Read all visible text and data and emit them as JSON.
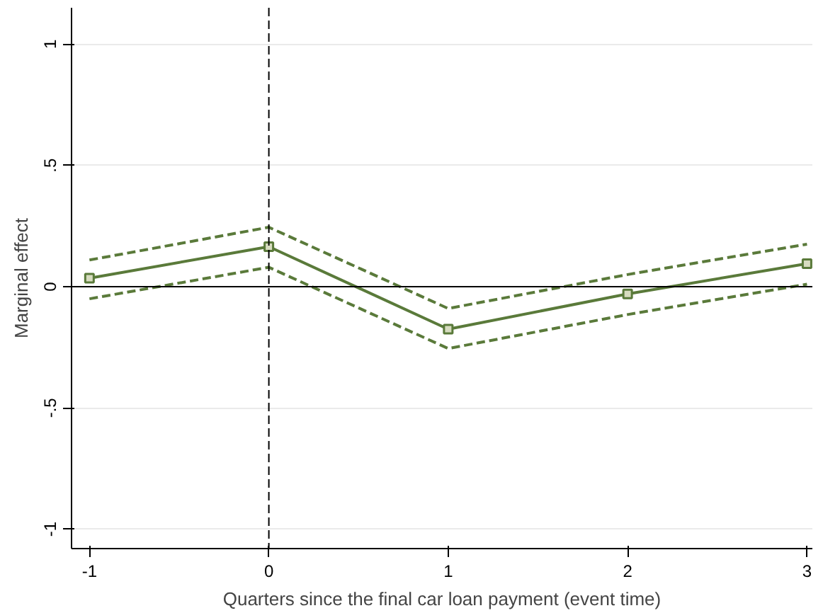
{
  "chart_data": {
    "type": "line",
    "xlabel": "Quarters since the final car loan payment (event time)",
    "ylabel": "Marginal effect",
    "x": [
      -1,
      0,
      1,
      2,
      3
    ],
    "series": [
      {
        "color": "#5a7a3a",
        "values": [
          0.11,
          0.245,
          -0.09,
          0.05,
          0.175
        ],
        "line_style": "dashed",
        "marker": "none"
      },
      {
        "color": "#5a7a3a",
        "values": [
          -0.05,
          0.08,
          -0.255,
          -0.115,
          0.01
        ],
        "line_style": "dashed",
        "marker": "none"
      },
      {
        "color": "#5a7a3a",
        "values": [
          0.035,
          0.165,
          -0.175,
          -0.03,
          0.095
        ]
      }
    ],
    "xlim": [
      -1.1,
      3.03
    ],
    "ylim": [
      -1.08,
      1.15
    ],
    "xticks": [
      -1,
      0,
      1,
      2,
      3
    ],
    "yticks": [
      {
        "value": -1,
        "label": "-1"
      },
      {
        "value": -0.5,
        "label": "-.5"
      },
      {
        "value": 0,
        "label": "0"
      },
      {
        "value": 0.5,
        "label": ".5"
      },
      {
        "value": 1,
        "label": "1"
      }
    ],
    "ref_lines": [
      {
        "axis": "y",
        "value": 0,
        "color": "#000000",
        "line_style": "solid"
      },
      {
        "axis": "x",
        "value": 0,
        "color": "#000000",
        "line_style": "dashed"
      }
    ],
    "grid": "y",
    "marker": "square",
    "line_style": "solid"
  }
}
